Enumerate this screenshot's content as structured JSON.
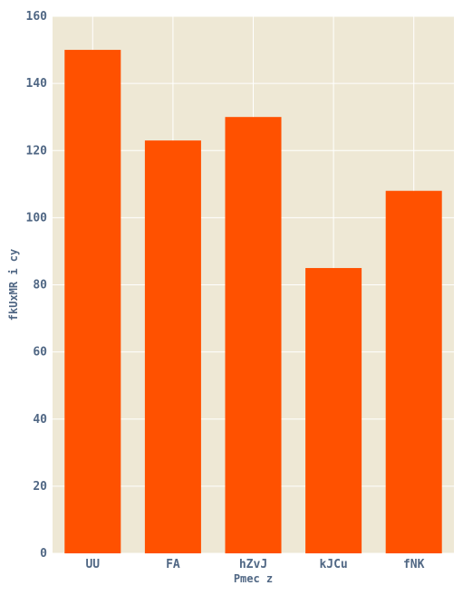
{
  "chart_data": {
    "type": "bar",
    "categories": [
      "UU",
      "FA",
      "hZvJ",
      "kJCu",
      "fNK"
    ],
    "values": [
      150,
      123,
      130,
      85,
      108
    ],
    "title": "",
    "xlabel": "Pmec z",
    "ylabel": "fkUxMR i cy",
    "ylim": [
      0,
      160
    ],
    "yticks": [
      0,
      20,
      40,
      60,
      80,
      100,
      120,
      140,
      160
    ],
    "grid": true,
    "colors": {
      "bar": "#ff5100",
      "plot_background": "#eee8d5",
      "grid": "#ffffff",
      "text": "#506784"
    }
  }
}
